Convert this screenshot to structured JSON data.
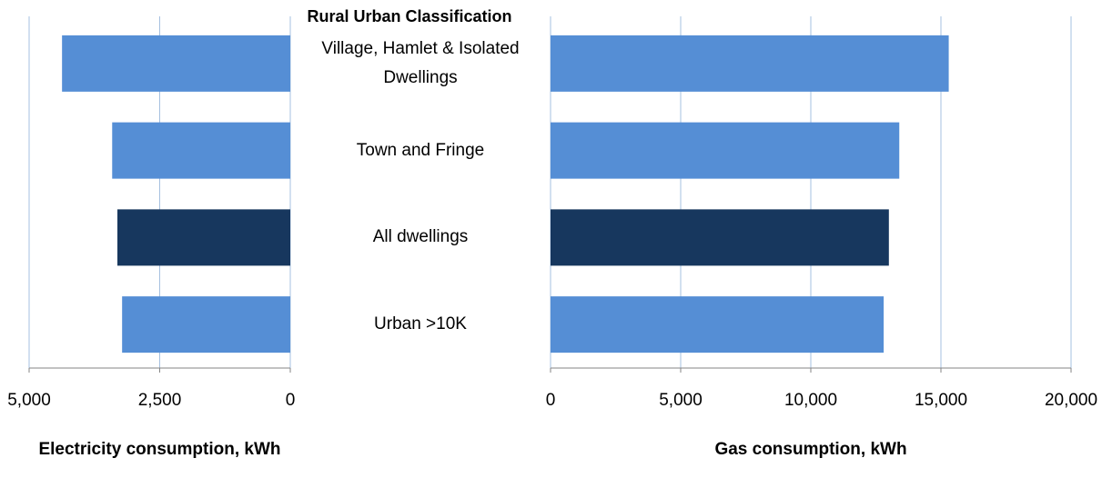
{
  "chart_data": [
    {
      "type": "bar",
      "orientation": "horizontal",
      "title": "Rural Urban Classification",
      "categories": [
        "Village, Hamlet & Isolated Dwellings",
        "Town and Fringe",
        "All dwellings",
        "Urban >10K"
      ],
      "values": [
        4370,
        3410,
        3310,
        3220
      ],
      "colors": [
        "#558ed5",
        "#558ed5",
        "#17375e",
        "#558ed5"
      ],
      "xlabel": "Electricity consumption, kWh",
      "xlim": [
        0,
        5000
      ],
      "xreversed": true,
      "xticks": [
        {
          "value": 5000,
          "label": "5,000"
        },
        {
          "value": 2500,
          "label": "2,500"
        },
        0
      ],
      "grid": true
    },
    {
      "type": "bar",
      "orientation": "horizontal",
      "values": [
        15300,
        13400,
        13000,
        12800
      ],
      "colors": [
        "#558ed5",
        "#558ed5",
        "#17375e",
        "#558ed5"
      ],
      "xlabel": "Gas consumption, kWh",
      "xlim": [
        0,
        20000
      ],
      "xreversed": false,
      "xticks": [
        0,
        {
          "value": 5000,
          "label": "5,000"
        },
        {
          "value": 10000,
          "label": "10,000"
        },
        {
          "value": 15000,
          "label": "15,000"
        },
        {
          "value": 20000,
          "label": "20,000"
        }
      ],
      "grid": true
    }
  ]
}
